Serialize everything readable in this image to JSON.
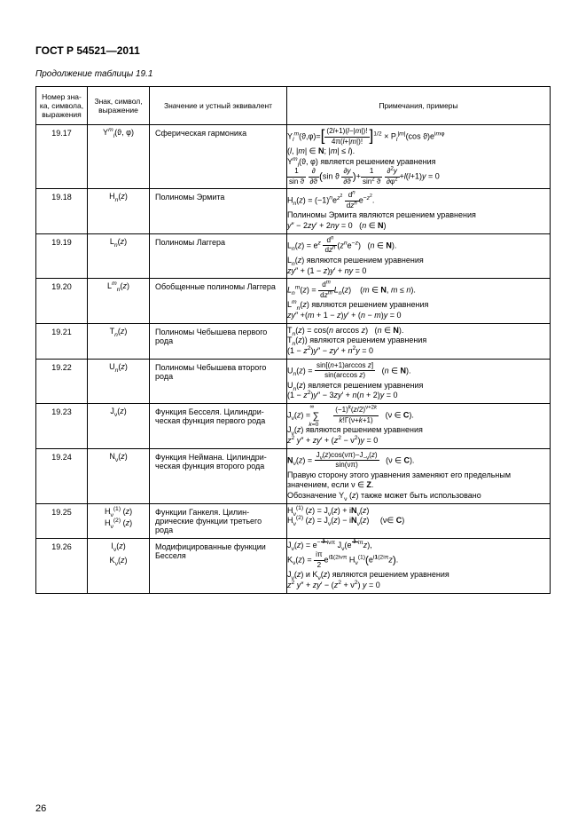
{
  "header": "ГОСТ Р 54521—2011",
  "continuation": "Продолжение таблицы 19.1",
  "page_number": "26",
  "table": {
    "headers": {
      "c1": "Номер зна-\nка, символа,\nвыражения",
      "c2": "Знак, символ,\nвыражение",
      "c3": "Значение и устный эквивалент",
      "c4": "Примечания, примеры"
    },
    "col_widths": {
      "c1": 58,
      "c2": 70,
      "c3": 155
    },
    "border_color": "#000000",
    "font_size_pt": 9,
    "rows": [
      {
        "num": "19.17",
        "sym_html": "Y<sup><i>m</i></sup><sub><i>l</i></sub>(ϑ, φ)",
        "meaning": "Сферическая гармоника",
        "notes_html": "Y<sub><i>l</i></sub><sup><i>m</i></sup>(ϑ,φ)=<span class='big-bracket'>[</span><span class='frac'><span class='num'>(2<i>l</i>+1)(<i>l</i>−|<i>m</i>|)!</span><span class='den'>4π(<i>l</i>+|<i>m</i>|)!</span></span><span class='big-bracket'>]</span><sup>1/2</sup> × P<sub><i>l</i></sub><sup>|<i>m</i>|</sup>(cos ϑ)e<sup>i<i>m</i>φ</sup><br>(<i>l</i>, |<i>m</i>| ∈ <b>N</b>; |<i>m</i>| ≤ <i>l</i>).<br>Y<sup><i>m</i></sup><sub><i>l</i></sub>(ϑ, φ) является решением уравнения<br><span class='frac'><span class='num'>1</span><span class='den'>sin ϑ</span></span> <span class='frac'><span class='num'>∂</span><span class='den'>∂ϑ</span></span><span class='med-bracket'>(</span>sin ϑ <span class='frac'><span class='num'>∂<i>y</i></span><span class='den'>∂ϑ</span></span><span class='med-bracket'>)</span>+<span class='frac'><span class='num'>1</span><span class='den'>sin<sup>2</sup> ϑ</span></span> <span class='frac'><span class='num'>∂<sup>2</sup><i>y</i></span><span class='den'>∂φ<sup>2</sup></span></span>+<i>l</i>(<i>l</i>+1)<i>y</i> = 0"
      },
      {
        "num": "19.18",
        "sym_html": "H<sub><i>n</i></sub>(<i>z</i>)",
        "meaning": "Полиномы Эрмита",
        "notes_html": "H<sub><i>n</i></sub>(<i>z</i>) = (−1)<sup><i>n</i></sup>e<sup><i>z</i><sup>2</sup></sup> <span class='frac'><span class='num'>d<sup><i>n</i></sup></span><span class='den'>d<i>z</i><sup><i>n</i></sup></span></span>e<sup>−<i>z</i><sup>2</sup></sup>.<br>Полиномы Эрмита являются решением уравнения<br><i>y</i>″ − 2<i>zy</i>′ + 2<i>ny</i> = 0&nbsp;&nbsp;&nbsp;(<i>n</i> ∈ <b>N</b>)"
      },
      {
        "num": "19.19",
        "sym_html": "L<sub><i>n</i></sub>(<i>z</i>)",
        "meaning": "Полиномы Лаггера",
        "notes_html": "L<sub><i>n</i></sub>(<i>z</i>) = e<sup><i>z</i></sup> <span class='frac'><span class='num'>d<sup><i>n</i></sup></span><span class='den'>d<i>z</i><sup><i>n</i></sup></span></span>(<i>z</i><sup><i>n</i></sup>e<sup>−<i>z</i></sup>)&nbsp;&nbsp;&nbsp;(<i>n</i> ∈ <b>N</b>).<br>L<sub><i>n</i></sub>(<i>z</i>) являются решением уравнения<br><i>zy</i>″ + (1 − <i>z</i>)<i>y</i>′ + <i>ny</i> = 0"
      },
      {
        "num": "19.20",
        "sym_html": "L<sup><i>m</i></sup><sub><i>n</i></sub>(<i>z</i>)",
        "meaning": "Обобщенные полиномы Лаг­гера",
        "notes_html": "<i>L</i><sub><i>n</i></sub><sup><i>m</i></sup>(<i>z</i>) = <span class='frac'><span class='num'>d<sup><i>m</i></sup></span><span class='den'>d<i>z</i><sup><i>m</i></sup></span></span><i>L</i><sub><i>n</i></sub>(<i>z</i>)&nbsp;&nbsp;&nbsp;&nbsp;(<i>m</i> ∈ <b>N</b>, <i>m</i> ≤ <i>n</i>).<br>L<sup><i>m</i></sup><sub><i>n</i></sub>(<i>z</i>) являются решением уравнения<br><i>zy</i>″ +(<i>m</i> + 1 − <i>z</i>)<i>y</i>′ + (<i>n</i> − <i>m</i>)<i>y</i> = 0"
      },
      {
        "num": "19.21",
        "sym_html": "T<sub><i>n</i></sub>(<i>z</i>)",
        "meaning": "Полиномы Чебышева перво­го рода",
        "notes_html": "T<sub><i>n</i></sub>(<i>z</i>) = cos(<i>n</i> arccos <i>z</i>)&nbsp;&nbsp;&nbsp;(<i>n</i> ∈ <b>N</b>).<br>T<sub><i>n</i></sub>(<i>z</i>)) являются решением уравнения<br>(1 − <i>z</i><sup>2</sup>)<i>y</i>″ − <i>zy</i>′ + <i>n</i><sup>2</sup><i>y</i> = 0"
      },
      {
        "num": "19.22",
        "sym_html": "U<sub><i>n</i></sub>(<i>z</i>)",
        "meaning": "Полиномы Чебышева второго рода",
        "notes_html": "U<sub><i>n</i></sub>(<i>z</i>) = <span class='frac'><span class='num'>sin[(<i>n</i>+1)arccos <i>z</i>]</span><span class='den'>sin(arccos <i>z</i>)</span></span>&nbsp;&nbsp;&nbsp;(<i>n</i> ∈ <b>N</b>).<br>U<sub><i>n</i></sub>(<i>z</i>) является решением уравнения<br>(1 − <i>z</i><sup>2</sup>)<i>y</i>″ − 3<i>zy</i>′ + <i>n</i>(<i>n</i> + 2)<i>y</i> = 0"
      },
      {
        "num": "19.23",
        "sym_html": "J<sub>ν</sub>(<i>z</i>)",
        "meaning": "Функция Бесселя. Цилиндри­ческая функция первого рода",
        "notes_html": "J<sub>ν</sub>(<i>z</i>) = <span style='font-size:1.2em;position:relative;top:1px'>∑</span><sub style='position:relative;left:-12px;top:7px'><i>k</i>=0</sub><sup style='position:relative;left:-22px;top:-7px'>∞</sup><span class='frac'><span class='num'>(−1)<sup><i>k</i></sup>(<i>z</i>/2)<sup>ν+2<i>k</i></sup></span><span class='den'><i>k</i>!Γ(ν+<i>k</i>+1)</span></span>&nbsp;&nbsp;&nbsp;(ν ∈ <b>C</b>).<br>J<sub>ν</sub>(<i>z</i>) являются решением уравнения<br><i>z</i><sup>2</sup> <i>y</i>″ + <i>zy</i>′ + (<i>z</i><sup>2</sup> − ν<sup>2</sup>)<i>y</i> = 0"
      },
      {
        "num": "19.24",
        "sym_html": "N<sub>ν</sub>(<i>z</i>)",
        "meaning": "Функция Неймана. Цилиндри­ческая функция второго рода",
        "notes_html": "<b>N</b><sub>ν</sub>(<i>z</i>) = <span class='frac'><span class='num'>J<sub>ν</sub>(<i>z</i>)cos(νπ)−J<sub>−ν</sub>(<i>z</i>)</span><span class='den'>sin(νπ)</span></span>&nbsp;&nbsp;&nbsp;(ν ∈ <b>C</b>).<br>Правую сторону этого уравнения заменяют его предельным значением, если ν ∈ <b>Z</b>.<br>Обозначение Y<sub>ν</sub> (<i>z</i>) также может быть использовано"
      },
      {
        "num": "19.25",
        "sym_html": "H<sub>ν</sub><sup>(1)</sup> (<i>z</i>)<br>H<sub>ν</sub><sup>(2)</sup> (<i>z</i>)",
        "meaning": "Функции Ганкеля. Цилин­дрические функции третьего рода",
        "notes_html": "H<sub>ν</sub><sup>(1)</sup> (<i>z</i>) = J<sub>ν</sub>(<i>z</i>) + i<b>N</b><sub>ν</sub>(<i>z</i>)<br>H<sub>ν</sub><sup>(2)</sup> (<i>z</i>) = J<sub>ν</sub>(<i>z</i>) − i<b>N</b><sub>ν</sub>(<i>z</i>)&nbsp;&nbsp;&nbsp;&nbsp;&nbsp;(ν∈ <b>C</b>)"
      },
      {
        "num": "19.26",
        "sym_html": "I<sub>ν</sub>(<i>z</i>)<br><span class='mb'></span>K<sub>ν</sub>(<i>z</i>)",
        "meaning": "Модифицированные функции Бесселя",
        "notes_html": "J<sub>ν</sub>(<i>z</i>) = e<sup>−<span class='frac' style='font-size:0.8em'><span class='num'>1</span><span class='den'>2</span></span>iνπ</sup> J<sub>ν</sub>(e<sup><span class='frac' style='font-size:0.8em'><span class='num'>1</span><span class='den'>2</span></span>iπ</sup><i>z</i>),<br>K<sub>ν</sub>(<i>z</i>) = <span class='frac'><span class='num'>iπ</span><span class='den'>2</span></span>e<sup>i<b>1</b>(2iνπ</sup> H<sub>ν</sub><sup>(1)</sup><span class='med-bracket'>(</span>e<sup>i<b>1</b>(2iπ</sup><i>z</i><span class='med-bracket'>)</span>.<br>J<sub>ν</sub>(<i>z</i>) и K<sub>ν</sub>(<i>z</i>) являются решением уравнения<br><i>z</i><sup>2</sup> <i>y</i>″ + <i>zy</i>′ − (<i>z</i><sup>2</sup> + ν<sup>2</sup>) <i>y</i> = 0"
      }
    ]
  }
}
